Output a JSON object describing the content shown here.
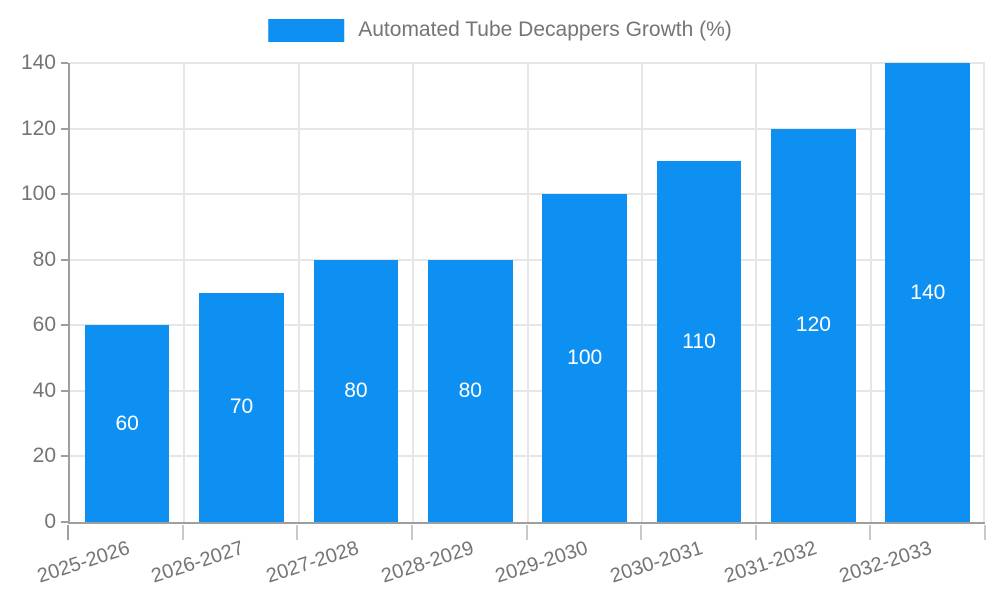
{
  "chart_data": {
    "type": "bar",
    "title": "Automated Tube Decappers Growth (%)",
    "categories": [
      "2025-2026",
      "2026-2027",
      "2027-2028",
      "2028-2029",
      "2029-2030",
      "2030-2031",
      "2031-2032",
      "2032-2033"
    ],
    "values": [
      60,
      70,
      80,
      80,
      100,
      110,
      120,
      140
    ],
    "ylabel": "",
    "xlabel": "",
    "ylim": [
      0,
      140
    ],
    "ytick_step": 20,
    "ytick_labels": [
      "0",
      "20",
      "40",
      "60",
      "80",
      "100",
      "120",
      "140"
    ],
    "grid": true,
    "legend_position": "top",
    "x_label_rotation_deg": -18,
    "colors": {
      "bar": "#0d90f2",
      "bar_value_label": "#ffffff",
      "axis_text": "#757575",
      "legend_text": "#757575",
      "gridline": "#e6e6e6",
      "axis_line": "#9e9e9e",
      "x_tick": "#c9c9c9",
      "background": "#ffffff"
    }
  }
}
